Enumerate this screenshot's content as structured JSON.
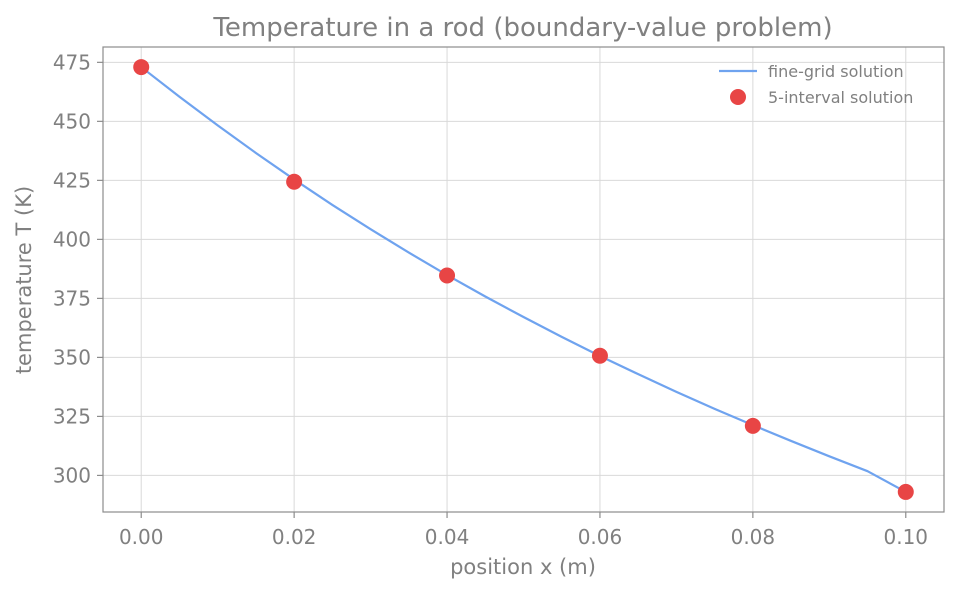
{
  "chart_data": {
    "type": "line",
    "title": "Temperature in a rod (boundary-value problem)",
    "xlabel": "position x (m)",
    "ylabel": "temperature T (K)",
    "xlim": [
      -0.005,
      0.105
    ],
    "ylim": [
      284.5,
      481.5
    ],
    "xticks": [
      0.0,
      0.02,
      0.04,
      0.06,
      0.08,
      0.1
    ],
    "xtick_labels": [
      "0.00",
      "0.02",
      "0.04",
      "0.06",
      "0.08",
      "0.10"
    ],
    "yticks": [
      300,
      325,
      350,
      375,
      400,
      425,
      450,
      475
    ],
    "ytick_labels": [
      "300",
      "325",
      "350",
      "375",
      "400",
      "425",
      "450",
      "475"
    ],
    "grid": true,
    "legend_position": "top-right",
    "series": [
      {
        "name": "fine-grid solution",
        "kind": "line",
        "color": "#6fa3ef",
        "x": [
          0.0,
          0.005,
          0.01,
          0.015,
          0.02,
          0.025,
          0.03,
          0.035,
          0.04,
          0.045,
          0.05,
          0.055,
          0.06,
          0.065,
          0.07,
          0.075,
          0.08,
          0.085,
          0.09,
          0.095,
          0.1
        ],
        "y": [
          473.0,
          460.4,
          448.3,
          436.6,
          425.4,
          414.6,
          404.3,
          394.4,
          384.9,
          375.8,
          367.1,
          358.7,
          350.6,
          342.9,
          335.4,
          328.2,
          321.3,
          314.6,
          308.1,
          301.8,
          293.0
        ]
      },
      {
        "name": "5-interval solution",
        "kind": "scatter",
        "color": "#e84545",
        "x": [
          0.0,
          0.02,
          0.04,
          0.06,
          0.08,
          0.1
        ],
        "y": [
          473.0,
          424.4,
          384.7,
          350.7,
          321.0,
          293.0
        ]
      }
    ]
  }
}
